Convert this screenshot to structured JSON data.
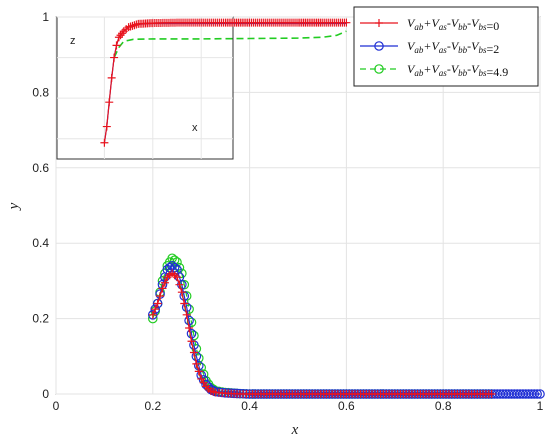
{
  "chart_data": [
    {
      "type": "line",
      "xlabel": "x",
      "ylabel": "y",
      "xlim": [
        0,
        1
      ],
      "ylim": [
        0,
        1
      ],
      "xticks": [
        "0",
        "0.2",
        "0.4",
        "0.6",
        "0.8",
        "1"
      ],
      "yticks": [
        "0",
        "0.2",
        "0.4",
        "0.6",
        "0.8",
        "1"
      ],
      "grid": true,
      "legend_position": "top-right",
      "series": [
        {
          "name": "V_ab+V_as-V_bb-V_bs=0",
          "legend_main": "V",
          "legend_tail": "=0",
          "color": "#e8141e",
          "line": "solid",
          "marker": "plus",
          "x": [
            0.2,
            0.21,
            0.22,
            0.23,
            0.24,
            0.25,
            0.26,
            0.27,
            0.28,
            0.29,
            0.3,
            0.31,
            0.32,
            0.33,
            0.35,
            0.38,
            0.4,
            0.5,
            0.6,
            0.7,
            0.8,
            0.9
          ],
          "y": [
            0.21,
            0.24,
            0.28,
            0.31,
            0.32,
            0.31,
            0.27,
            0.21,
            0.14,
            0.08,
            0.04,
            0.02,
            0.008,
            0.004,
            0.002,
            0.0,
            0.0,
            0.0,
            0.0,
            0.0,
            0.0,
            0.0
          ]
        },
        {
          "name": "V_ab+V_as-V_bb-V_bs=2",
          "legend_main": "V",
          "legend_tail": "=2",
          "color": "#1f2fd4",
          "line": "solid",
          "marker": "circle",
          "x": [
            0.2,
            0.21,
            0.22,
            0.23,
            0.24,
            0.25,
            0.26,
            0.27,
            0.28,
            0.29,
            0.3,
            0.31,
            0.32,
            0.33,
            0.35,
            0.38,
            0.4,
            0.5,
            0.6,
            0.7,
            0.8,
            0.9,
            1.0
          ],
          "y": [
            0.21,
            0.24,
            0.29,
            0.33,
            0.34,
            0.33,
            0.29,
            0.23,
            0.16,
            0.1,
            0.05,
            0.025,
            0.012,
            0.006,
            0.003,
            0.001,
            0.0,
            0.0,
            0.0,
            0.0,
            0.0,
            0.0,
            0.0
          ]
        },
        {
          "name": "V_ab+V_as-V_bb-V_bs=4.9",
          "legend_main": "V",
          "legend_tail": "=4.9",
          "color": "#22cc22",
          "line": "dashed",
          "marker": "circle",
          "x": [
            0.2,
            0.21,
            0.22,
            0.23,
            0.24,
            0.25,
            0.26,
            0.27,
            0.28,
            0.29,
            0.3,
            0.31,
            0.32,
            0.33,
            0.35,
            0.38,
            0.4,
            0.5,
            0.6,
            0.7,
            0.8,
            0.9
          ],
          "y": [
            0.2,
            0.24,
            0.3,
            0.34,
            0.36,
            0.35,
            0.32,
            0.26,
            0.19,
            0.12,
            0.07,
            0.035,
            0.017,
            0.008,
            0.004,
            0.001,
            0.0,
            0.0,
            0.0,
            0.0,
            0.0,
            0.0
          ]
        }
      ]
    },
    {
      "type": "line",
      "inset": true,
      "xlabel": "x",
      "ylabel": "z",
      "ylim": [
        0.65,
        1
      ],
      "yticks": [
        "0.8",
        "1"
      ],
      "grid": true,
      "series": [
        {
          "name": "V_ab+V_as-V_bb-V_bs=0",
          "color": "#e8141e",
          "line": "solid",
          "marker": "plus",
          "x": [
            0.1,
            0.105,
            0.11,
            0.115,
            0.12,
            0.125,
            0.13,
            0.14,
            0.15,
            0.17,
            0.2,
            0.25,
            0.3,
            0.35,
            0.4,
            0.45,
            0.5,
            0.55,
            0.6
          ],
          "y": [
            0.69,
            0.73,
            0.79,
            0.85,
            0.9,
            0.93,
            0.95,
            0.965,
            0.975,
            0.983,
            0.985,
            0.986,
            0.986,
            0.986,
            0.986,
            0.986,
            0.986,
            0.986,
            0.986
          ]
        },
        {
          "name": "V_ab+V_as-V_bb-V_bs=2",
          "color": "#1f2fd4",
          "line": "solid",
          "marker": "none",
          "x": [
            0.1,
            0.105,
            0.11,
            0.115,
            0.12,
            0.125,
            0.13,
            0.14,
            0.15,
            0.17,
            0.2,
            0.3,
            0.4,
            0.5,
            0.6
          ],
          "y": [
            0.69,
            0.73,
            0.79,
            0.85,
            0.9,
            0.93,
            0.95,
            0.965,
            0.975,
            0.982,
            0.984,
            0.984,
            0.984,
            0.984,
            0.984
          ]
        },
        {
          "name": "V_ab+V_as-V_bb-V_bs=4.9",
          "color": "#22cc22",
          "line": "dashed",
          "marker": "none",
          "x": [
            0.12,
            0.13,
            0.14,
            0.16,
            0.2,
            0.3,
            0.4,
            0.5,
            0.55,
            0.58,
            0.6
          ],
          "y": [
            0.9,
            0.925,
            0.94,
            0.945,
            0.946,
            0.946,
            0.947,
            0.948,
            0.95,
            0.955,
            0.965
          ]
        }
      ]
    }
  ]
}
